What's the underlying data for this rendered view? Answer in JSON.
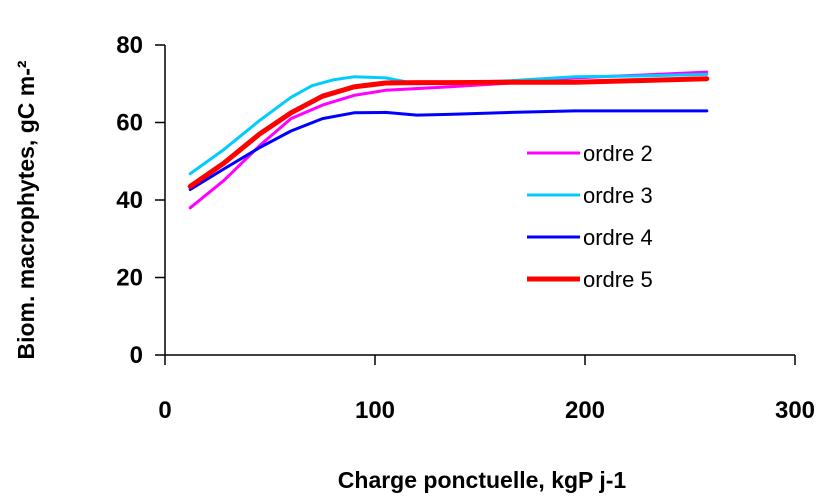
{
  "chart_data": {
    "type": "line",
    "xlabel": "Charge ponctuelle, kgP j-1",
    "ylabel": "Biom. macrophytes, gC m-²",
    "xlim": [
      0,
      300
    ],
    "ylim": [
      0,
      80
    ],
    "xticks": [
      0,
      100,
      200,
      300
    ],
    "yticks": [
      0,
      20,
      40,
      60,
      80
    ],
    "grid": false,
    "legend_position": "right",
    "series": [
      {
        "name": "ordre 2",
        "color": "#ff00ff",
        "x": [
          12,
          28,
          45,
          60,
          75,
          90,
          105,
          135,
          165,
          195,
          225,
          258
        ],
        "y": [
          38,
          45,
          54,
          61,
          64.5,
          67,
          68.3,
          69.2,
          70.2,
          71.5,
          72.2,
          73
        ]
      },
      {
        "name": "ordre 3",
        "color": "#00ccff",
        "x": [
          12,
          28,
          45,
          60,
          70,
          80,
          90,
          105,
          120,
          135,
          165,
          195,
          225,
          258
        ],
        "y": [
          46.8,
          53,
          60.5,
          66.5,
          69.5,
          71,
          71.8,
          71.5,
          70,
          70.2,
          70.8,
          71.8,
          72,
          72.4
        ]
      },
      {
        "name": "ordre 4",
        "color": "#0000ff",
        "x": [
          12,
          28,
          45,
          60,
          75,
          90,
          105,
          120,
          135,
          165,
          195,
          225,
          258
        ],
        "y": [
          42.7,
          48,
          53.5,
          57.8,
          61,
          62.5,
          62.6,
          61.9,
          62.1,
          62.6,
          63,
          63,
          63
        ]
      },
      {
        "name": "ordre 5",
        "color": "#ff0000",
        "x": [
          12,
          28,
          45,
          60,
          75,
          90,
          105,
          120,
          135,
          165,
          195,
          225,
          258
        ],
        "y": [
          43.5,
          49.5,
          57,
          62.5,
          66.8,
          69.2,
          70.2,
          70.3,
          70.3,
          70.4,
          70.4,
          70.8,
          71.3
        ]
      }
    ]
  }
}
